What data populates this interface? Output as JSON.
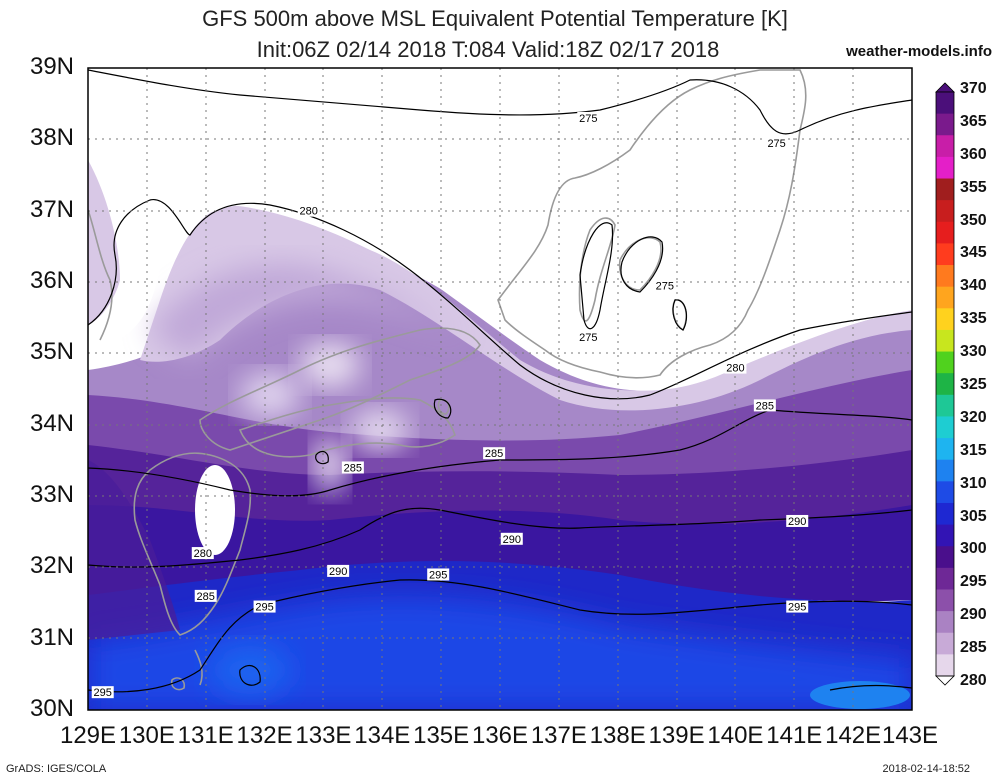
{
  "title_line1": "GFS 500m above MSL Equivalent Potential Temperature [K]",
  "title_line2": "Init:06Z 02/14 2018 T:084 Valid:18Z 02/17 2018",
  "site": "weather-models.info",
  "footer_left": "GrADS: IGES/COLA",
  "footer_right": "2018-02-14-18:52",
  "map": {
    "lat_ticks": [
      "39N",
      "38N",
      "37N",
      "36N",
      "35N",
      "34N",
      "33N",
      "32N",
      "31N",
      "30N"
    ],
    "lon_ticks": [
      "129E",
      "130E",
      "131E",
      "132E",
      "133E",
      "134E",
      "135E",
      "136E",
      "137E",
      "138E",
      "139E",
      "140E",
      "141E",
      "142E",
      "143E"
    ],
    "lat_range": [
      30,
      39
    ],
    "lon_range": [
      129,
      143
    ],
    "grid": "dotted",
    "contour_labels": [
      {
        "text": "275",
        "lon": 137.5,
        "lat": 38.3
      },
      {
        "text": "275",
        "lon": 140.7,
        "lat": 37.95
      },
      {
        "text": "275",
        "lon": 138.8,
        "lat": 35.95
      },
      {
        "text": "275",
        "lon": 137.5,
        "lat": 35.23
      },
      {
        "text": "280",
        "lon": 132.75,
        "lat": 37.0
      },
      {
        "text": "280",
        "lon": 140.0,
        "lat": 34.8
      },
      {
        "text": "280",
        "lon": 130.95,
        "lat": 32.2
      },
      {
        "text": "285",
        "lon": 140.5,
        "lat": 34.27
      },
      {
        "text": "285",
        "lon": 135.9,
        "lat": 33.6
      },
      {
        "text": "285",
        "lon": 133.5,
        "lat": 33.4
      },
      {
        "text": "285",
        "lon": 131.0,
        "lat": 31.6
      },
      {
        "text": "290",
        "lon": 141.05,
        "lat": 32.65
      },
      {
        "text": "290",
        "lon": 136.2,
        "lat": 32.4
      },
      {
        "text": "290",
        "lon": 133.25,
        "lat": 31.95
      },
      {
        "text": "295",
        "lon": 134.95,
        "lat": 31.9
      },
      {
        "text": "295",
        "lon": 141.05,
        "lat": 31.45
      },
      {
        "text": "295",
        "lon": 132.0,
        "lat": 31.45
      },
      {
        "text": "295",
        "lon": 129.25,
        "lat": 30.25
      }
    ]
  },
  "colorbar": {
    "labels": [
      "370",
      "365",
      "360",
      "355",
      "350",
      "345",
      "340",
      "335",
      "330",
      "325",
      "320",
      "315",
      "310",
      "305",
      "300",
      "295",
      "290",
      "285",
      "280"
    ],
    "colors": [
      "#4b0f7a",
      "#7a1a8c",
      "#c81ea8",
      "#e41fc8",
      "#a01e1e",
      "#c81e1e",
      "#e61e1e",
      "#ff3c1e",
      "#ff7a1e",
      "#ffa51e",
      "#ffd21e",
      "#c8e61e",
      "#50d21e",
      "#1eb446",
      "#1ec896",
      "#1ecdd2",
      "#1eb4f0",
      "#1e82f0",
      "#1e4be6",
      "#1e28d2",
      "#3214b4",
      "#4a0f8c",
      "#6e2896",
      "#8c50aa",
      "#aa82c3",
      "#c8aad7",
      "#e6d7eb"
    ]
  }
}
